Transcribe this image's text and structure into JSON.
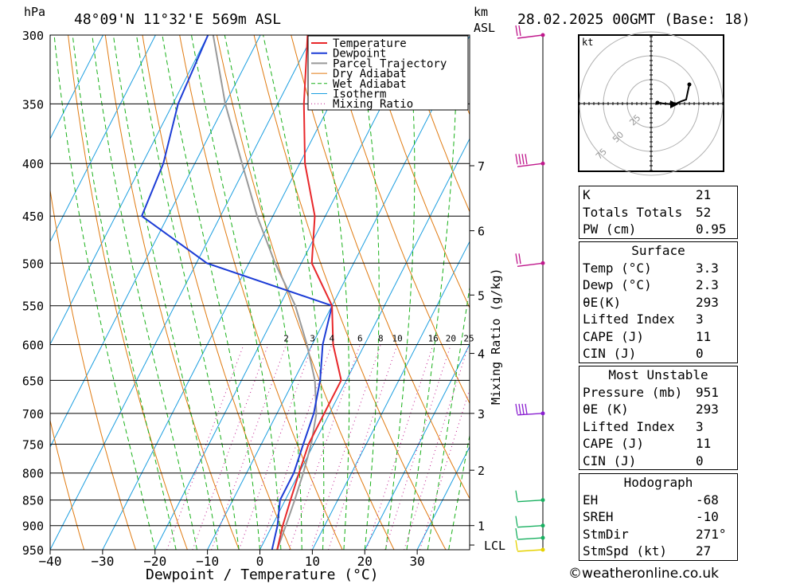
{
  "header": {
    "location": "48°09'N  11°32'E  569m  ASL",
    "datetime": "28.02.2025  00GMT  (Base: 18)",
    "pressure_unit": "hPa",
    "height_unit_km": "km",
    "height_unit_asl": "ASL"
  },
  "chart_data": {
    "type": "line",
    "title": "",
    "xlabel": "Dewpoint / Temperature (°C)",
    "ylabel": "hPa",
    "right_label": "Mixing Ratio (g/kg)",
    "x_ticks": [
      -40,
      -30,
      -20,
      -10,
      0,
      10,
      20,
      30
    ],
    "pressure_levels": [
      300,
      350,
      400,
      450,
      500,
      550,
      600,
      650,
      700,
      750,
      800,
      850,
      900,
      950
    ],
    "xlim": [
      -40,
      40
    ],
    "ylim": [
      950,
      300
    ],
    "series": [
      {
        "name": "Temperature",
        "color": "#e8272a",
        "points": [
          [
            300,
            -41
          ],
          [
            350,
            -35
          ],
          [
            400,
            -29
          ],
          [
            450,
            -22
          ],
          [
            500,
            -18
          ],
          [
            550,
            -10
          ],
          [
            600,
            -6
          ],
          [
            650,
            -1
          ],
          [
            700,
            -1
          ],
          [
            750,
            -1
          ],
          [
            800,
            0
          ],
          [
            850,
            1
          ],
          [
            900,
            2
          ],
          [
            950,
            3.3
          ]
        ]
      },
      {
        "name": "Dewpoint",
        "color": "#1c3cd6",
        "points": [
          [
            300,
            -60
          ],
          [
            350,
            -59
          ],
          [
            400,
            -56
          ],
          [
            450,
            -55
          ],
          [
            500,
            -38
          ],
          [
            550,
            -10
          ],
          [
            600,
            -8
          ],
          [
            650,
            -5
          ],
          [
            700,
            -3
          ],
          [
            750,
            -2
          ],
          [
            800,
            -1
          ],
          [
            850,
            -1
          ],
          [
            900,
            1
          ],
          [
            950,
            2.3
          ]
        ]
      },
      {
        "name": "Parcel Trajectory",
        "color": "#999999",
        "points": [
          [
            300,
            -59
          ],
          [
            350,
            -50
          ],
          [
            400,
            -41
          ],
          [
            450,
            -33
          ],
          [
            500,
            -25
          ],
          [
            550,
            -17
          ],
          [
            600,
            -11
          ],
          [
            650,
            -6
          ],
          [
            700,
            -2.5
          ],
          [
            750,
            -0.5
          ],
          [
            800,
            0.8
          ],
          [
            850,
            1.8
          ],
          [
            900,
            2.6
          ],
          [
            950,
            3.3
          ]
        ]
      }
    ],
    "legend": [
      "Temperature",
      "Dewpoint",
      "Parcel Trajectory",
      "Dry Adiabat",
      "Wet Adiabat",
      "Isotherm",
      "Mixing Ratio"
    ],
    "legend_colors": [
      "#e8272a",
      "#1c3cd6",
      "#999999",
      "#e07a10",
      "#18b018",
      "#1b9ee0",
      "#c0188c"
    ],
    "legend_position": "top-right",
    "mixing_ratio_labels": [
      "2",
      "3",
      "4",
      "6",
      "8",
      "10",
      "16",
      "20",
      "25"
    ],
    "km_levels": [
      {
        "label": "7",
        "p": 402
      },
      {
        "label": "6",
        "p": 465
      },
      {
        "label": "5",
        "p": 537
      },
      {
        "label": "4",
        "p": 612
      },
      {
        "label": "3",
        "p": 700
      },
      {
        "label": "2",
        "p": 795
      },
      {
        "label": "1",
        "p": 900
      },
      {
        "label": "LCL",
        "p": 940
      }
    ],
    "wind_levels": [
      300,
      400,
      500,
      700,
      850,
      900,
      925,
      950
    ]
  },
  "hodograph": {
    "unit": "kt",
    "rings": [
      "25",
      "50",
      "75"
    ]
  },
  "indices": {
    "general": [
      {
        "label": "K",
        "value": "21"
      },
      {
        "label": "Totals Totals",
        "value": "52"
      },
      {
        "label": "PW (cm)",
        "value": "0.95"
      }
    ],
    "surface_title": "Surface",
    "surface": [
      {
        "label": "Temp (°C)",
        "value": "3.3"
      },
      {
        "label": "Dewp (°C)",
        "value": "2.3"
      },
      {
        "label": "θE(K)",
        "value": "293"
      },
      {
        "label": "Lifted Index",
        "value": "3"
      },
      {
        "label": "CAPE (J)",
        "value": "11"
      },
      {
        "label": "CIN (J)",
        "value": "0"
      }
    ],
    "unstable_title": "Most Unstable",
    "unstable": [
      {
        "label": "Pressure (mb)",
        "value": "951"
      },
      {
        "label": "θE (K)",
        "value": "293"
      },
      {
        "label": "Lifted Index",
        "value": "3"
      },
      {
        "label": "CAPE (J)",
        "value": "11"
      },
      {
        "label": "CIN (J)",
        "value": "0"
      }
    ],
    "hodo_title": "Hodograph",
    "hodo": [
      {
        "label": "EH",
        "value": "-68"
      },
      {
        "label": "SREH",
        "value": "-10"
      },
      {
        "label": "StmDir",
        "value": "271°"
      },
      {
        "label": "StmSpd (kt)",
        "value": "27"
      }
    ]
  },
  "footer": {
    "copyright": "©weatheronline.co.uk"
  }
}
